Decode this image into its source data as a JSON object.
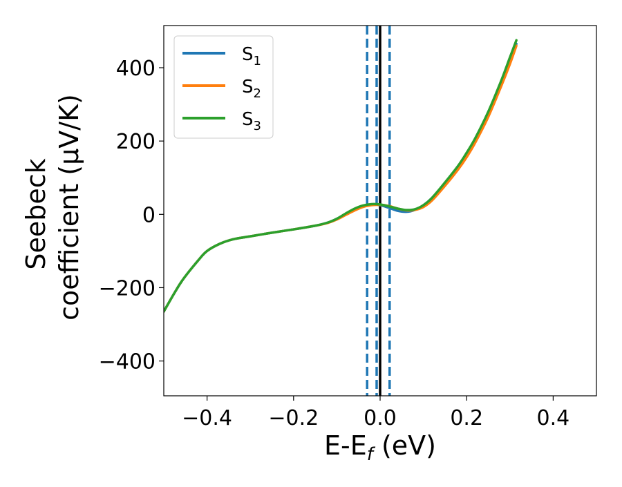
{
  "chart_data": {
    "type": "line",
    "xlabel": "E-E",
    "xlabel_sub": "f",
    "xlabel_unit": " (eV)",
    "ylabel_line1": "Seebeck",
    "ylabel_line2": "coefficient  (μV/K)",
    "xlim": [
      -0.5,
      0.5
    ],
    "ylim": [
      -495,
      515
    ],
    "xticks": [
      -0.4,
      -0.2,
      0.0,
      0.2,
      0.4
    ],
    "xtick_labels": [
      "−0.4",
      "−0.2",
      "0.0",
      "0.2",
      "0.4"
    ],
    "yticks": [
      -400,
      -200,
      0,
      200,
      400
    ],
    "ytick_labels": [
      "−400",
      "−200",
      "0",
      "200",
      "400"
    ],
    "legend_position": "top-left",
    "series": [
      {
        "name": "S",
        "name_sub": "1",
        "color": "#1f77b4",
        "x": [
          -0.5,
          -0.46,
          -0.42,
          -0.4,
          -0.37,
          -0.34,
          -0.3,
          -0.25,
          -0.2,
          -0.15,
          -0.12,
          -0.1,
          -0.08,
          -0.06,
          -0.04,
          -0.02,
          0.0,
          0.02,
          0.04,
          0.06,
          0.08,
          0.1,
          0.12,
          0.15,
          0.18,
          0.2,
          0.22,
          0.25,
          0.28,
          0.3,
          0.315
        ],
        "y": [
          -265,
          -185,
          -125,
          -100,
          -80,
          -68,
          -60,
          -50,
          -41,
          -31,
          -22,
          -12,
          1,
          13,
          22,
          27,
          25,
          18,
          10,
          7,
          12,
          25,
          45,
          85,
          130,
          165,
          205,
          275,
          360,
          420,
          465
        ]
      },
      {
        "name": "S",
        "name_sub": "2",
        "color": "#ff7f0e",
        "x": [
          -0.5,
          -0.46,
          -0.42,
          -0.4,
          -0.37,
          -0.34,
          -0.3,
          -0.25,
          -0.2,
          -0.15,
          -0.12,
          -0.1,
          -0.08,
          -0.06,
          -0.04,
          -0.02,
          0.0,
          0.02,
          0.04,
          0.06,
          0.08,
          0.1,
          0.12,
          0.15,
          0.18,
          0.2,
          0.22,
          0.25,
          0.28,
          0.3,
          0.315
        ],
        "y": [
          -265,
          -185,
          -125,
          -100,
          -80,
          -68,
          -60,
          -50,
          -41,
          -31,
          -23,
          -14,
          -2,
          10,
          20,
          25,
          26,
          23,
          16,
          11,
          12,
          20,
          38,
          78,
          122,
          156,
          196,
          266,
          350,
          410,
          460
        ]
      },
      {
        "name": "S",
        "name_sub": "3",
        "color": "#2ca02c",
        "x": [
          -0.5,
          -0.46,
          -0.42,
          -0.4,
          -0.37,
          -0.34,
          -0.3,
          -0.25,
          -0.2,
          -0.15,
          -0.12,
          -0.1,
          -0.08,
          -0.06,
          -0.04,
          -0.02,
          0.0,
          0.02,
          0.04,
          0.06,
          0.08,
          0.1,
          0.12,
          0.15,
          0.18,
          0.2,
          0.22,
          0.25,
          0.28,
          0.3,
          0.315
        ],
        "y": [
          -265,
          -185,
          -125,
          -100,
          -80,
          -68,
          -60,
          -50,
          -41,
          -31,
          -22,
          -12,
          2,
          15,
          24,
          28,
          27,
          22,
          16,
          12,
          14,
          25,
          45,
          87,
          132,
          168,
          208,
          280,
          365,
          428,
          475
        ]
      }
    ],
    "reference_lines": [
      {
        "x": 0.0,
        "style": "solid",
        "color": "#000000"
      },
      {
        "x": -0.03,
        "style": "dashed",
        "color": "#1f77b4"
      },
      {
        "x": -0.008,
        "style": "dashed",
        "color": "#1f77b4"
      },
      {
        "x": 0.022,
        "style": "dashed",
        "color": "#1f77b4"
      }
    ]
  }
}
